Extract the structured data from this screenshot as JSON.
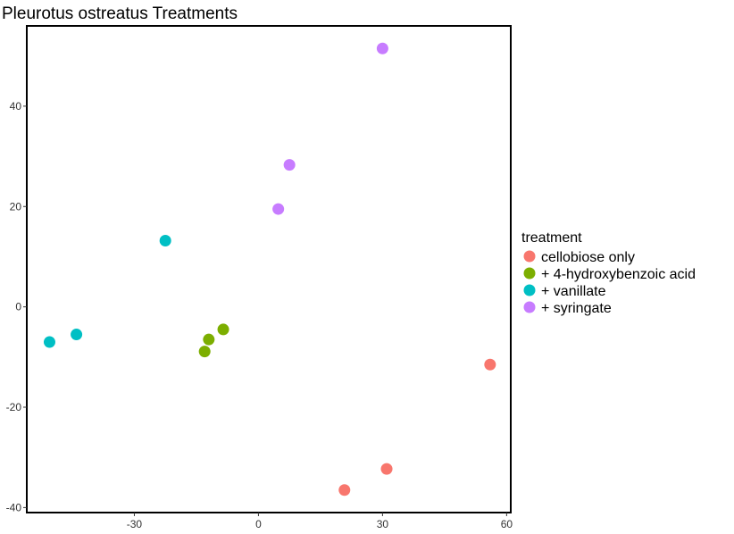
{
  "chart_data": {
    "type": "scatter",
    "title": "Pleurotus ostreatus Treatments",
    "xlabel": "",
    "ylabel": "",
    "xlim": [
      -56,
      61
    ],
    "ylim": [
      -41,
      56
    ],
    "x_ticks": [
      -30,
      0,
      30,
      60
    ],
    "y_ticks": [
      -40,
      -20,
      0,
      20,
      40
    ],
    "x_tick_labels": [
      "-30",
      "0",
      "30",
      "60"
    ],
    "y_tick_labels": [
      "-40",
      "-20",
      "0",
      "20",
      "40"
    ],
    "grid": false,
    "legend": {
      "title": "treatment",
      "position": "right"
    },
    "series": [
      {
        "name": "cellobiose only",
        "color": "#F8766D",
        "points": [
          [
            56,
            -11.5
          ],
          [
            31,
            -32.3
          ],
          [
            20.8,
            -36.5
          ]
        ]
      },
      {
        "name": "+ 4-hydroxybenzoic acid",
        "color": "#7CAE00",
        "points": [
          [
            -8.5,
            -4.5
          ],
          [
            -12,
            -6.5
          ],
          [
            -13,
            -8.9
          ]
        ]
      },
      {
        "name": "+ vanillate",
        "color": "#00BFC4",
        "points": [
          [
            -22.5,
            13.2
          ],
          [
            -44,
            -5.5
          ],
          [
            -50.5,
            -7
          ]
        ]
      },
      {
        "name": "+ syringate",
        "color": "#C77CFF",
        "points": [
          [
            30,
            51.5
          ],
          [
            7.5,
            28.3
          ],
          [
            4.8,
            19.5
          ]
        ]
      }
    ]
  }
}
